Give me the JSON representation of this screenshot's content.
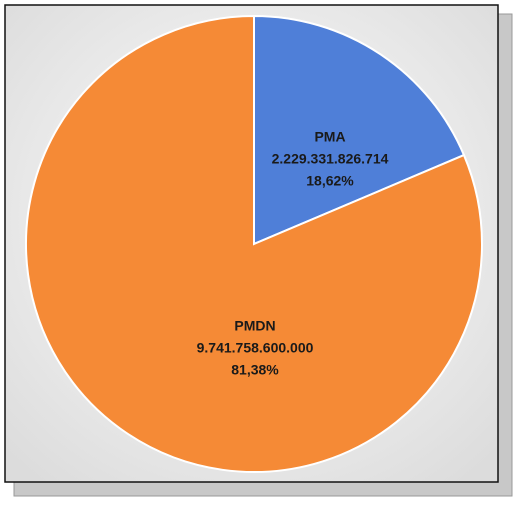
{
  "chart_data": {
    "type": "pie",
    "categories": [
      "PMA",
      "PMDN"
    ],
    "values": [
      2229331826714,
      9741758600000
    ],
    "value_labels": [
      "2.229.331.826.714",
      "9.741.758.600.000"
    ],
    "percent_labels": [
      "18,62%",
      "81,38%"
    ],
    "colors": [
      "#4f7fd8",
      "#f58a36"
    ]
  }
}
